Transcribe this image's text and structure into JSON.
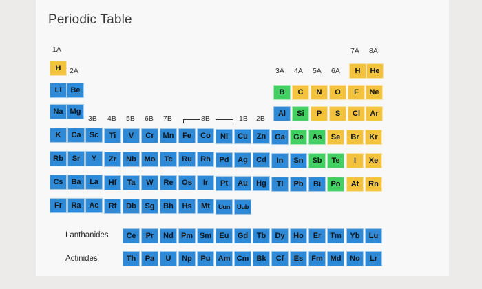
{
  "title": "Periodic Table",
  "group_labels": {
    "g1": "1A",
    "g2": "2A",
    "g3": "3B",
    "g4": "4B",
    "g5": "5B",
    "g6": "6B",
    "g7": "7B",
    "g8": "8B",
    "g11": "1B",
    "g12": "2B",
    "g13": "3A",
    "g14": "4A",
    "g15": "5A",
    "g16": "6A",
    "g17": "7A",
    "g18": "8A"
  },
  "rows": {
    "r1": [
      "H",
      "H",
      "He"
    ],
    "r2": [
      "Li",
      "Be",
      "B",
      "C",
      "N",
      "O",
      "F",
      "Ne"
    ],
    "r3": [
      "Na",
      "Mg",
      "Al",
      "Si",
      "P",
      "S",
      "Cl",
      "Ar"
    ],
    "r4": [
      "K",
      "Ca",
      "Sc",
      "Ti",
      "V",
      "Cr",
      "Mn",
      "Fe",
      "Co",
      "Ni",
      "Cu",
      "Zn",
      "Ga",
      "Ge",
      "As",
      "Se",
      "Br",
      "Kr"
    ],
    "r5": [
      "Rb",
      "Sr",
      "Y",
      "Zr",
      "Nb",
      "Mo",
      "Tc",
      "Ru",
      "Rh",
      "Pd",
      "Ag",
      "Cd",
      "In",
      "Sn",
      "Sb",
      "Te",
      "I",
      "Xe"
    ],
    "r6": [
      "Cs",
      "Ba",
      "La",
      "Hf",
      "Ta",
      "W",
      "Re",
      "Os",
      "Ir",
      "Pt",
      "Au",
      "Hg",
      "Tl",
      "Pb",
      "Bi",
      "Po",
      "At",
      "Rn"
    ],
    "r7": [
      "Fr",
      "Ra",
      "Ac",
      "Rf",
      "Db",
      "Sg",
      "Bh",
      "Hs",
      "Mt",
      "Uun",
      "Uub"
    ],
    "lanthanides": [
      "Ce",
      "Pr",
      "Nd",
      "Pm",
      "Sm",
      "Eu",
      "Gd",
      "Tb",
      "Dy",
      "Ho",
      "Er",
      "Tm",
      "Yb",
      "Lu"
    ],
    "actinides": [
      "Th",
      "Pa",
      "U",
      "Np",
      "Pu",
      "Am",
      "Cm",
      "Bk",
      "Cf",
      "Es",
      "Fm",
      "Md",
      "No",
      "Lr"
    ]
  },
  "series_labels": {
    "lanthanides": "Lanthanides",
    "actinides": "Actinides"
  },
  "colors": {
    "metal": "#2e8ad6",
    "nonmetal": "#f3c23e",
    "metalloid": "#44cf63"
  }
}
